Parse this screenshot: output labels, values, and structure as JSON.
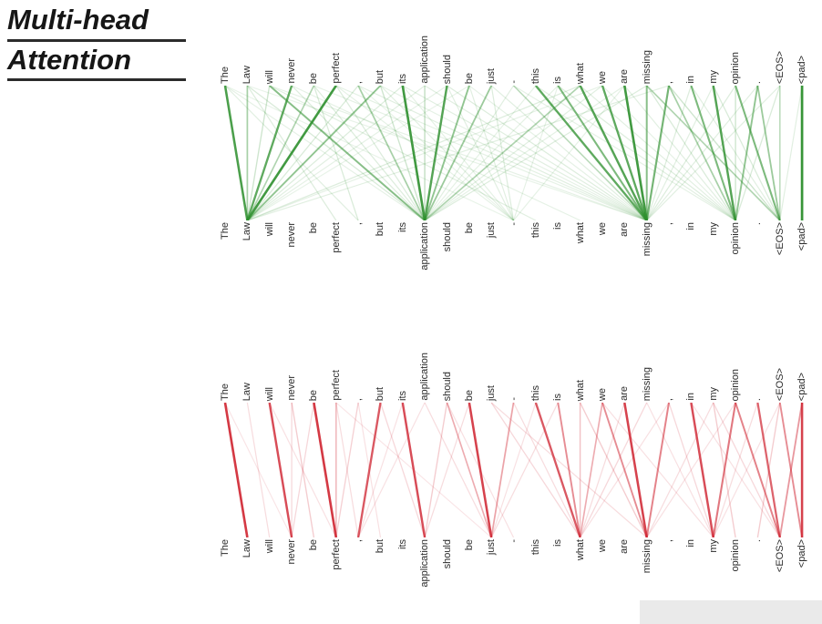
{
  "title": {
    "line1": "Multi-head",
    "line2": "Attention"
  },
  "tokens": [
    "The",
    "Law",
    "will",
    "never",
    "be",
    "perfect",
    ",",
    "but",
    "its",
    "application",
    "should",
    "be",
    "just",
    "-",
    "this",
    "is",
    "what",
    "we",
    "are",
    "missing",
    ",",
    "in",
    "my",
    "opinion",
    ".",
    "<EOS>",
    "<pad>"
  ],
  "chart_data": [
    {
      "type": "bipartite-attention",
      "name": "attention-head-green",
      "color": "#2d8f2d",
      "edges": [
        [
          0,
          1,
          0.85
        ],
        [
          1,
          1,
          0.4
        ],
        [
          3,
          1,
          0.75
        ],
        [
          5,
          1,
          0.9
        ],
        [
          7,
          1,
          0.5
        ],
        [
          4,
          1,
          0.35
        ],
        [
          2,
          9,
          0.55
        ],
        [
          6,
          9,
          0.4
        ],
        [
          8,
          9,
          0.9
        ],
        [
          10,
          9,
          0.8
        ],
        [
          11,
          9,
          0.5
        ],
        [
          12,
          9,
          0.45
        ],
        [
          16,
          9,
          0.35
        ],
        [
          14,
          19,
          0.75
        ],
        [
          15,
          19,
          0.6
        ],
        [
          16,
          19,
          0.8
        ],
        [
          17,
          19,
          0.75
        ],
        [
          18,
          19,
          0.9
        ],
        [
          19,
          19,
          0.55
        ],
        [
          20,
          19,
          0.65
        ],
        [
          13,
          19,
          0.3
        ],
        [
          21,
          23,
          0.6
        ],
        [
          22,
          23,
          0.8
        ],
        [
          24,
          23,
          0.5
        ],
        [
          20,
          23,
          0.4
        ],
        [
          23,
          25,
          0.6
        ],
        [
          24,
          25,
          0.45
        ],
        [
          19,
          25,
          0.35
        ],
        [
          26,
          26,
          0.95
        ],
        [
          0,
          6,
          0.1
        ],
        [
          0,
          9,
          0.08
        ],
        [
          0,
          13,
          0.07
        ],
        [
          1,
          5,
          0.12
        ],
        [
          1,
          9,
          0.15
        ],
        [
          1,
          19,
          0.07
        ],
        [
          2,
          1,
          0.2
        ],
        [
          2,
          14,
          0.1
        ],
        [
          2,
          19,
          0.08
        ],
        [
          3,
          9,
          0.12
        ],
        [
          3,
          16,
          0.08
        ],
        [
          4,
          9,
          0.12
        ],
        [
          4,
          19,
          0.08
        ],
        [
          4,
          6,
          0.15
        ],
        [
          5,
          9,
          0.14
        ],
        [
          5,
          13,
          0.08
        ],
        [
          5,
          19,
          0.09
        ],
        [
          6,
          1,
          0.15
        ],
        [
          6,
          13,
          0.07
        ],
        [
          6,
          19,
          0.1
        ],
        [
          7,
          9,
          0.2
        ],
        [
          7,
          13,
          0.1
        ],
        [
          7,
          19,
          0.08
        ],
        [
          8,
          1,
          0.12
        ],
        [
          8,
          13,
          0.09
        ],
        [
          8,
          19,
          0.1
        ],
        [
          9,
          1,
          0.1
        ],
        [
          9,
          9,
          0.25
        ],
        [
          9,
          19,
          0.1
        ],
        [
          10,
          1,
          0.08
        ],
        [
          10,
          13,
          0.1
        ],
        [
          10,
          19,
          0.12
        ],
        [
          11,
          1,
          0.07
        ],
        [
          11,
          13,
          0.1
        ],
        [
          11,
          19,
          0.08
        ],
        [
          12,
          13,
          0.12
        ],
        [
          12,
          19,
          0.1
        ],
        [
          13,
          9,
          0.1
        ],
        [
          13,
          23,
          0.08
        ],
        [
          14,
          9,
          0.08
        ],
        [
          14,
          23,
          0.1
        ],
        [
          15,
          9,
          0.09
        ],
        [
          15,
          13,
          0.08
        ],
        [
          15,
          23,
          0.12
        ],
        [
          16,
          1,
          0.12
        ],
        [
          16,
          23,
          0.1
        ],
        [
          17,
          1,
          0.08
        ],
        [
          17,
          9,
          0.1
        ],
        [
          17,
          23,
          0.08
        ],
        [
          18,
          9,
          0.09
        ],
        [
          18,
          13,
          0.08
        ],
        [
          18,
          23,
          0.1
        ],
        [
          19,
          9,
          0.12
        ],
        [
          19,
          23,
          0.15
        ],
        [
          20,
          1,
          0.1
        ],
        [
          20,
          25,
          0.2
        ],
        [
          21,
          19,
          0.12
        ],
        [
          21,
          25,
          0.1
        ],
        [
          22,
          19,
          0.1
        ],
        [
          22,
          25,
          0.15
        ],
        [
          23,
          19,
          0.12
        ],
        [
          23,
          23,
          0.2
        ],
        [
          24,
          19,
          0.1
        ],
        [
          25,
          19,
          0.1
        ],
        [
          25,
          23,
          0.15
        ],
        [
          25,
          25,
          0.3
        ],
        [
          26,
          25,
          0.1
        ]
      ]
    },
    {
      "type": "bipartite-attention",
      "name": "attention-head-red",
      "color": "#cf2330",
      "edges": [
        [
          0,
          1,
          0.9
        ],
        [
          2,
          3,
          0.8
        ],
        [
          4,
          5,
          0.9
        ],
        [
          7,
          6,
          0.75
        ],
        [
          8,
          9,
          0.8
        ],
        [
          11,
          12,
          0.85
        ],
        [
          14,
          16,
          0.75
        ],
        [
          15,
          16,
          0.5
        ],
        [
          17,
          16,
          0.35
        ],
        [
          18,
          19,
          0.85
        ],
        [
          17,
          19,
          0.5
        ],
        [
          20,
          19,
          0.55
        ],
        [
          21,
          22,
          0.8
        ],
        [
          23,
          22,
          0.6
        ],
        [
          23,
          25,
          0.55
        ],
        [
          24,
          25,
          0.7
        ],
        [
          25,
          26,
          0.5
        ],
        [
          26,
          25,
          0.45
        ],
        [
          26,
          26,
          0.85
        ],
        [
          13,
          12,
          0.4
        ],
        [
          10,
          12,
          0.35
        ],
        [
          5,
          5,
          0.3
        ],
        [
          0,
          3,
          0.08
        ],
        [
          1,
          2,
          0.12
        ],
        [
          2,
          5,
          0.1
        ],
        [
          3,
          3,
          0.15
        ],
        [
          3,
          4,
          0.2
        ],
        [
          4,
          3,
          0.15
        ],
        [
          5,
          6,
          0.12
        ],
        [
          5,
          12,
          0.08
        ],
        [
          6,
          7,
          0.1
        ],
        [
          6,
          5,
          0.18
        ],
        [
          7,
          9,
          0.15
        ],
        [
          8,
          6,
          0.1
        ],
        [
          9,
          6,
          0.1
        ],
        [
          9,
          12,
          0.12
        ],
        [
          10,
          9,
          0.2
        ],
        [
          10,
          13,
          0.1
        ],
        [
          11,
          9,
          0.12
        ],
        [
          12,
          16,
          0.15
        ],
        [
          12,
          19,
          0.12
        ],
        [
          13,
          16,
          0.12
        ],
        [
          14,
          12,
          0.1
        ],
        [
          15,
          12,
          0.12
        ],
        [
          16,
          19,
          0.2
        ],
        [
          16,
          16,
          0.25
        ],
        [
          17,
          22,
          0.1
        ],
        [
          18,
          16,
          0.12
        ],
        [
          19,
          16,
          0.15
        ],
        [
          19,
          22,
          0.1
        ],
        [
          20,
          16,
          0.1
        ],
        [
          20,
          22,
          0.15
        ],
        [
          21,
          25,
          0.1
        ],
        [
          22,
          19,
          0.12
        ],
        [
          22,
          25,
          0.15
        ],
        [
          22,
          23,
          0.2
        ],
        [
          23,
          19,
          0.1
        ],
        [
          24,
          22,
          0.12
        ],
        [
          25,
          22,
          0.1
        ],
        [
          25,
          24,
          0.2
        ]
      ]
    }
  ]
}
